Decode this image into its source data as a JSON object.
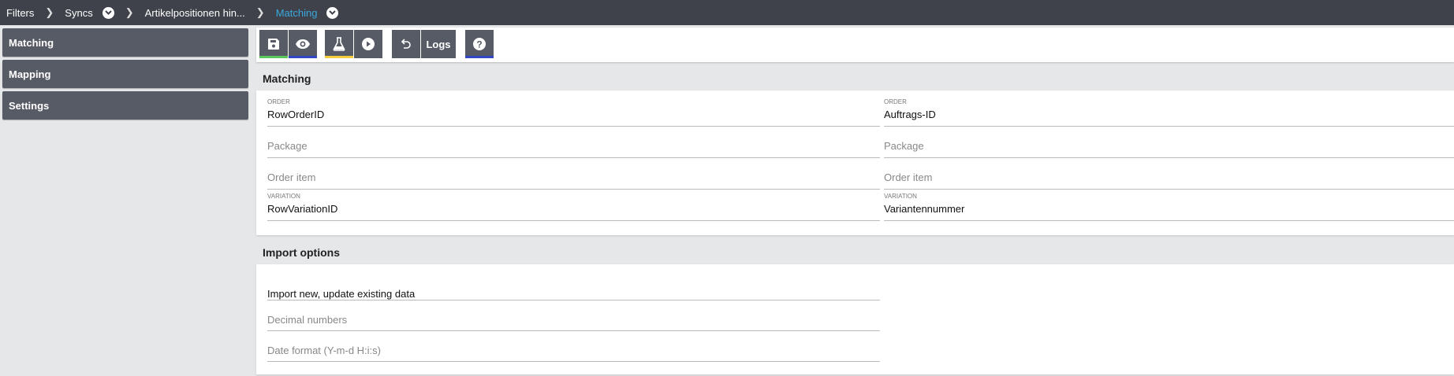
{
  "breadcrumb": [
    {
      "label": "Filters"
    },
    {
      "label": "Syncs",
      "dropdown": true
    },
    {
      "label": "Artikelpositionen hin..."
    },
    {
      "label": "Matching",
      "dropdown": true,
      "active": true
    }
  ],
  "sidebar": {
    "items": [
      {
        "label": "Matching"
      },
      {
        "label": "Mapping"
      },
      {
        "label": "Settings"
      }
    ]
  },
  "toolbar": {
    "save_icon": "save-icon",
    "preview_icon": "eye-icon",
    "test_icon": "flask-icon",
    "run_icon": "play-icon",
    "undo_icon": "undo-icon",
    "logs_label": "Logs",
    "help_icon": "help-icon",
    "colors": {
      "save": "#5ac85a",
      "preview": "#3347c4",
      "test": "#f5cf3a",
      "help": "#3347c4"
    }
  },
  "matching": {
    "title": "Matching",
    "left": [
      {
        "label": "ORDER",
        "value": "RowOrderID"
      },
      {
        "placeholder": "Package"
      },
      {
        "placeholder": "Order item"
      },
      {
        "label": "VARIATION",
        "value": "RowVariationID"
      }
    ],
    "right": [
      {
        "label": "ORDER",
        "value": "Auftrags-ID"
      },
      {
        "placeholder": "Package"
      },
      {
        "placeholder": "Order item"
      },
      {
        "label": "VARIATION",
        "value": "Variantennummer"
      }
    ]
  },
  "import_options": {
    "title": "Import options",
    "mode": "Import new, update existing data",
    "decimal_placeholder": "Decimal numbers",
    "date_placeholder": "Date format (Y-m-d H:i:s)"
  }
}
